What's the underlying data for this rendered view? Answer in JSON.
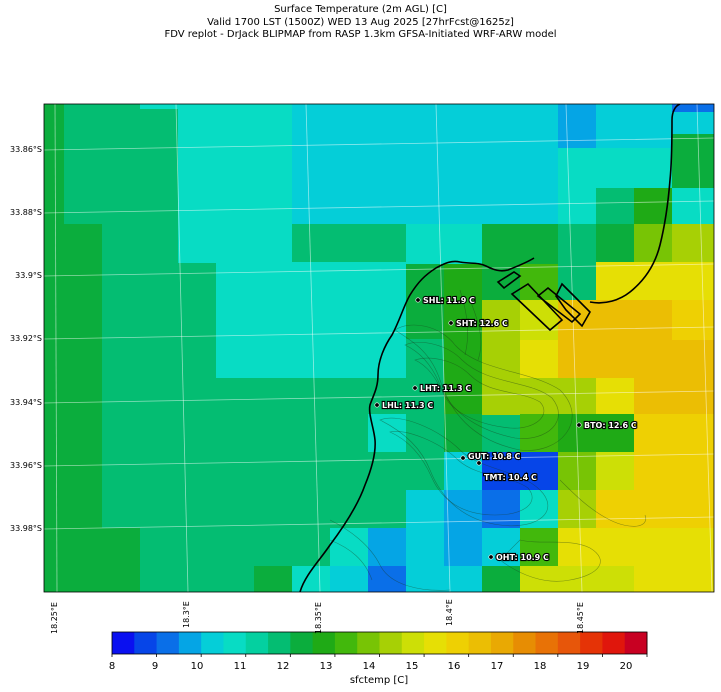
{
  "header": {
    "line1": "Surface Temperature (2m AGL) [C]",
    "line2": "Valid 1700 LST (1500Z) WED 13 Aug 2025 [27hrFcst@1625z]",
    "line3": "FDV replot - DrJack BLIPMAP from RASP 1.3km GFSA-Initiated WRF-ARW model"
  },
  "axes": {
    "lat_labels": [
      "33.86°S",
      "33.88°S",
      "33.9°S",
      "33.92°S",
      "33.94°S",
      "33.96°S",
      "33.98°S"
    ],
    "lon_labels": [
      "18.25°E",
      "18.3°E",
      "18.35°E",
      "18.4°E",
      "18.45°E"
    ]
  },
  "stations": [
    {
      "label": "SHL: 11.9 C"
    },
    {
      "label": "SHT: 12.6 C"
    },
    {
      "label": "LHT: 11.3 C"
    },
    {
      "label": "LHL: 11.3 C"
    },
    {
      "label": "BTO: 12.6 C"
    },
    {
      "label": "GUT: 10.8 C"
    },
    {
      "label": "TMT: 10.4 C"
    },
    {
      "label": "OHT: 10.9 C"
    }
  ],
  "colorbar": {
    "ticks": [
      "8",
      "9",
      "10",
      "11",
      "12",
      "13",
      "14",
      "15",
      "16",
      "17",
      "18",
      "19",
      "20"
    ],
    "label": "sfctemp [C]",
    "colors": [
      "#0a10f0",
      "#0645e8",
      "#0a6fe8",
      "#05a5e5",
      "#05ced8",
      "#08dcc4",
      "#04d0a0",
      "#04bd72",
      "#0bad3d",
      "#1faa16",
      "#42b80c",
      "#78c405",
      "#a7d005",
      "#cddf06",
      "#e6df05",
      "#eed003",
      "#ebbe04",
      "#e9a903",
      "#e78d03",
      "#e87206",
      "#e7560a",
      "#e53306",
      "#e0160c",
      "#c80022"
    ]
  }
}
